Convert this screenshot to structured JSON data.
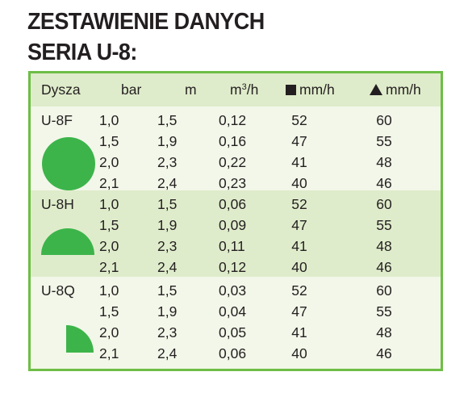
{
  "title": {
    "line1": "ZESTAWIENIE DANYCH",
    "line2": "SERIA U-8:"
  },
  "table": {
    "headers": {
      "nozzle": "Dysza",
      "pressure": "bar",
      "radius": "m",
      "flow_base": "m",
      "flow_sup": "3",
      "flow_tail": "/h",
      "square_rate": "mm/h",
      "triangle_rate": "mm/h"
    },
    "groups": [
      {
        "nozzle": "U-8F",
        "shape_icon": "full-circle-icon",
        "rows": [
          [
            "1,0",
            "1,5",
            "0,12",
            "52",
            "60"
          ],
          [
            "1,5",
            "1,9",
            "0,16",
            "47",
            "55"
          ],
          [
            "2,0",
            "2,3",
            "0,22",
            "41",
            "48"
          ],
          [
            "2,1",
            "2,4",
            "0,23",
            "40",
            "46"
          ]
        ]
      },
      {
        "nozzle": "U-8H",
        "shape_icon": "half-circle-icon",
        "rows": [
          [
            "1,0",
            "1,5",
            "0,06",
            "52",
            "60"
          ],
          [
            "1,5",
            "1,9",
            "0,09",
            "47",
            "55"
          ],
          [
            "2,0",
            "2,3",
            "0,11",
            "41",
            "48"
          ],
          [
            "2,1",
            "2,4",
            "0,12",
            "40",
            "46"
          ]
        ]
      },
      {
        "nozzle": "U-8Q",
        "shape_icon": "quarter-circle-icon",
        "rows": [
          [
            "1,0",
            "1,5",
            "0,03",
            "52",
            "60"
          ],
          [
            "1,5",
            "1,9",
            "0,04",
            "47",
            "55"
          ],
          [
            "2,0",
            "2,3",
            "0,05",
            "41",
            "48"
          ],
          [
            "2,1",
            "2,4",
            "0,06",
            "40",
            "46"
          ]
        ]
      }
    ]
  },
  "colors": {
    "accent_green": "#3cb44a",
    "border_green": "#6dbe45",
    "band_light": "#f2f7e9",
    "band_dark": "#dfeccb"
  }
}
